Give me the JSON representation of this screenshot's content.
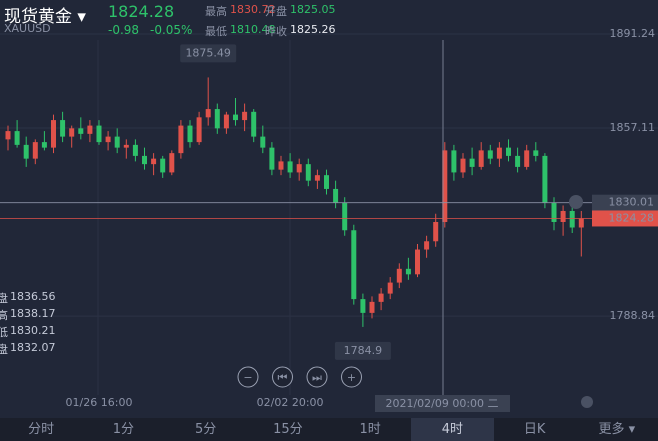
{
  "header": {
    "name": "现货黄金",
    "symbol": "XAUUSD",
    "price": 1824.28,
    "change": -0.98,
    "change_pct": "-0.05%",
    "stats": [
      {
        "label": "最高",
        "value": 1830.72,
        "color": "#e0524a"
      },
      {
        "label": "开盘",
        "value": 1825.05,
        "color": "#2ec26a"
      },
      {
        "label": "最低",
        "value": 1810.48,
        "color": "#2ec26a"
      },
      {
        "label": "昨收",
        "value": 1825.26,
        "color": "#e8eaf0"
      }
    ]
  },
  "overlay": [
    {
      "label": "盘",
      "value": "1836.56"
    },
    {
      "label": "高",
      "value": "1838.17"
    },
    {
      "label": "低",
      "value": "1830.21"
    },
    {
      "label": "盘",
      "value": "1832.07"
    }
  ],
  "chart_data": {
    "type": "candlestick",
    "categories": [
      null,
      null,
      null,
      null,
      null,
      null,
      null,
      null,
      null,
      null,
      "01/26 16:00",
      null,
      null,
      null,
      null,
      null,
      null,
      null,
      null,
      null,
      null,
      null,
      null,
      null,
      null,
      null,
      null,
      null,
      null,
      null,
      null,
      "02/02 20:00",
      null,
      null,
      null,
      null,
      null,
      null,
      null,
      null,
      null,
      null,
      null,
      null,
      null,
      null,
      null,
      null,
      null,
      null,
      null,
      null,
      null,
      null,
      null,
      null,
      null,
      null,
      null,
      null,
      null,
      null,
      null,
      null
    ],
    "open": [
      1853,
      1856,
      1851,
      1846,
      1852,
      1850,
      1860,
      1854,
      1857,
      1855,
      1858,
      1852,
      1854,
      1850,
      1851,
      1847,
      1844,
      1846,
      1841,
      1848,
      1858,
      1852,
      1861,
      1864,
      1857,
      1862,
      1860,
      1863,
      1854,
      1850,
      1842,
      1845,
      1841,
      1844,
      1838,
      1840,
      1835,
      1830,
      1820,
      1795,
      1790,
      1794,
      1797,
      1801,
      1806,
      1804,
      1813,
      1816,
      1823,
      1849,
      1841,
      1846,
      1843,
      1849,
      1846,
      1850,
      1847,
      1843,
      1849,
      1847,
      1830,
      1823,
      1827,
      1821
    ],
    "high": [
      1858,
      1860,
      1854,
      1853,
      1856,
      1862,
      1863,
      1858,
      1861,
      1860,
      1860,
      1856,
      1857,
      1853,
      1853,
      1850,
      1848,
      1847,
      1849,
      1860,
      1860,
      1863,
      1875.49,
      1866,
      1863,
      1868,
      1866,
      1864,
      1858,
      1852,
      1847,
      1848,
      1846,
      1846,
      1842,
      1842,
      1838,
      1832,
      1822,
      1797,
      1796,
      1799,
      1803,
      1808,
      1810,
      1815,
      1818,
      1826,
      1852,
      1851,
      1848,
      1850,
      1852,
      1851,
      1852,
      1853,
      1850,
      1851,
      1852,
      1848,
      1832,
      1829,
      1830.72,
      1827
    ],
    "low": [
      1849,
      1850,
      1843,
      1844,
      1849,
      1848,
      1852,
      1850,
      1853,
      1852,
      1851,
      1849,
      1848,
      1846,
      1845,
      1842,
      1840,
      1839,
      1840,
      1846,
      1850,
      1851,
      1858,
      1855,
      1855,
      1858,
      1856,
      1852,
      1848,
      1840,
      1840,
      1839,
      1838,
      1836,
      1835,
      1833,
      1828,
      1818,
      1793,
      1784.9,
      1788,
      1791,
      1795,
      1799,
      1802,
      1803,
      1810,
      1814,
      1821,
      1838,
      1839,
      1840,
      1842,
      1844,
      1843,
      1845,
      1841,
      1842,
      1845,
      1828,
      1820,
      1818,
      1819,
      1810.48
    ],
    "close": [
      1856,
      1851,
      1846,
      1852,
      1850,
      1860,
      1854,
      1857,
      1855,
      1858,
      1852,
      1854,
      1850,
      1851,
      1847,
      1844,
      1846,
      1841,
      1848,
      1858,
      1852,
      1861,
      1864,
      1857,
      1862,
      1860,
      1863,
      1854,
      1850,
      1842,
      1845,
      1841,
      1844,
      1838,
      1840,
      1835,
      1830,
      1820,
      1795,
      1790,
      1794,
      1797,
      1801,
      1806,
      1804,
      1813,
      1816,
      1823,
      1849,
      1841,
      1846,
      1843,
      1849,
      1846,
      1850,
      1847,
      1843,
      1849,
      1847,
      1830,
      1823,
      1827,
      1821,
      1824.28
    ],
    "ylim": [
      1762,
      1903.6
    ],
    "yticks": [
      1891.24,
      1857.11,
      1788.84
    ],
    "grid": true,
    "up_color": "#e0524a",
    "down_color": "#2ec26a",
    "crosshair": {
      "price": 1830.01,
      "label": "2021/02/09 00:00 二"
    }
  },
  "tabs": [
    "分时",
    "1分",
    "5分",
    "15分",
    "1时",
    "4时",
    "日K",
    "更多"
  ],
  "selected_tab": "4时"
}
